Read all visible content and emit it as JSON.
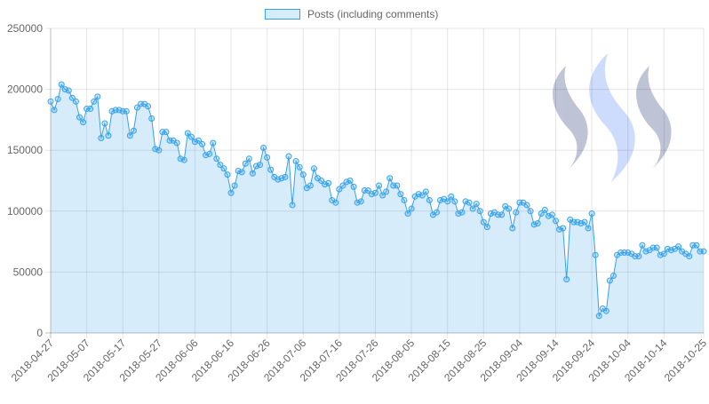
{
  "chart_data": {
    "type": "area",
    "legend_position": "top",
    "grid": true,
    "series": [
      {
        "name": "Posts (including comments)",
        "color": "#36a2eb",
        "fill": "rgba(54,162,235,0.2)",
        "values": [
          190000,
          183000,
          192000,
          204000,
          200000,
          199000,
          193000,
          190000,
          177000,
          173000,
          184000,
          184000,
          190000,
          194000,
          160000,
          172000,
          162000,
          182000,
          183000,
          183000,
          182000,
          182000,
          162000,
          166000,
          185000,
          188000,
          188000,
          186000,
          176000,
          151000,
          150000,
          165000,
          165000,
          158000,
          158000,
          156000,
          143000,
          142000,
          164000,
          161000,
          157000,
          158000,
          155000,
          146000,
          147000,
          156000,
          143000,
          138000,
          135000,
          130000,
          115000,
          121000,
          133000,
          132000,
          139000,
          143000,
          131000,
          137000,
          138000,
          152000,
          144000,
          134000,
          128000,
          126000,
          127000,
          128000,
          145000,
          105000,
          141000,
          136000,
          130000,
          119000,
          121000,
          135000,
          127000,
          125000,
          122000,
          123000,
          109000,
          107000,
          118000,
          121000,
          124000,
          125000,
          120000,
          107000,
          108000,
          117000,
          117000,
          114000,
          115000,
          121000,
          113000,
          116000,
          127000,
          121000,
          121000,
          114000,
          109000,
          98000,
          102000,
          112000,
          114000,
          113000,
          116000,
          109000,
          97000,
          99000,
          109000,
          110000,
          108000,
          112000,
          108000,
          98000,
          99000,
          108000,
          107000,
          102000,
          106000,
          100000,
          91000,
          87000,
          98000,
          99000,
          97000,
          97000,
          104000,
          102000,
          86000,
          99000,
          107000,
          107000,
          105000,
          100000,
          89000,
          90000,
          98000,
          101000,
          96000,
          97000,
          92000,
          85000,
          86000,
          44000,
          93000,
          91000,
          91000,
          90000,
          91000,
          86000,
          98000,
          64000,
          14000,
          20000,
          18000,
          43000,
          47000,
          64000,
          66000,
          66000,
          66000,
          65000,
          63000,
          63000,
          72000,
          67000,
          68000,
          70000,
          70000,
          64000,
          65000,
          69000,
          68000,
          69000,
          71000,
          67000,
          65000,
          63000,
          72000,
          72000,
          67000,
          67000
        ]
      }
    ],
    "x_start": "2018-04-27",
    "x_end": "2018-10-25",
    "x_tick_labels": [
      "2018-04-27",
      "2018-05-07",
      "2018-05-17",
      "2018-05-27",
      "2018-06-06",
      "2018-06-16",
      "2018-06-26",
      "2018-07-06",
      "2018-07-16",
      "2018-07-26",
      "2018-08-05",
      "2018-08-15",
      "2018-08-25",
      "2018-09-04",
      "2018-09-14",
      "2018-09-24",
      "2018-10-04",
      "2018-10-14",
      "2018-10-25"
    ],
    "y_tick_labels": [
      "0",
      "50000",
      "100000",
      "150000",
      "200000",
      "250000"
    ],
    "ylim": [
      0,
      250000
    ],
    "watermark_icon": "steem-logo-icon"
  }
}
